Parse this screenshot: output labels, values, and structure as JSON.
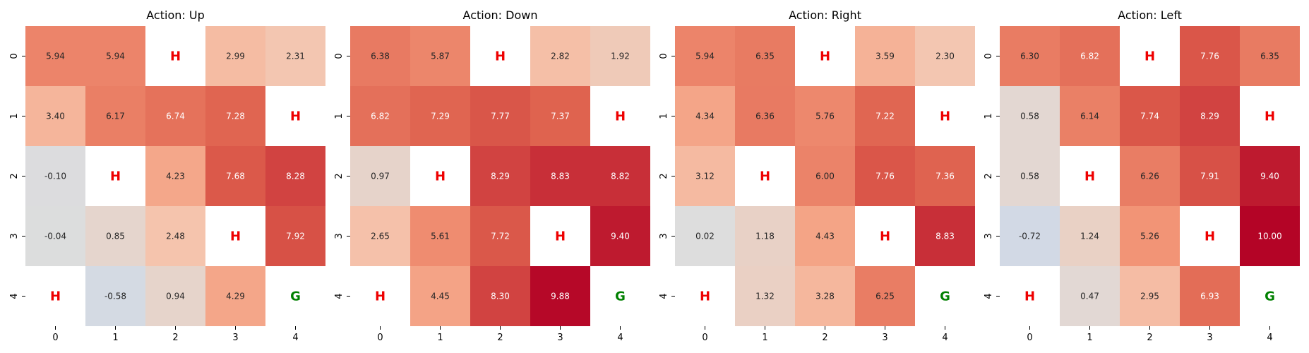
{
  "chart_data": [
    {
      "type": "heatmap",
      "title": "Action: Up",
      "x_ticks": [
        "0",
        "1",
        "2",
        "3",
        "4"
      ],
      "y_ticks": [
        "0",
        "1",
        "2",
        "3",
        "4"
      ],
      "cells": [
        [
          5.94,
          5.94,
          "H",
          2.99,
          2.31
        ],
        [
          3.4,
          6.17,
          6.74,
          7.28,
          "H"
        ],
        [
          -0.1,
          "H",
          4.23,
          7.68,
          8.28
        ],
        [
          -0.04,
          0.85,
          2.48,
          "H",
          7.92
        ],
        [
          "H",
          -0.58,
          0.94,
          4.29,
          "G"
        ]
      ]
    },
    {
      "type": "heatmap",
      "title": "Action: Down",
      "x_ticks": [
        "0",
        "1",
        "2",
        "3",
        "4"
      ],
      "y_ticks": [
        "0",
        "1",
        "2",
        "3",
        "4"
      ],
      "cells": [
        [
          6.38,
          5.87,
          "H",
          2.82,
          1.92
        ],
        [
          6.82,
          7.29,
          7.77,
          7.37,
          "H"
        ],
        [
          0.97,
          "H",
          8.29,
          8.83,
          8.82
        ],
        [
          2.65,
          5.61,
          7.72,
          "H",
          9.4
        ],
        [
          "H",
          4.45,
          8.3,
          9.88,
          "G"
        ]
      ]
    },
    {
      "type": "heatmap",
      "title": "Action: Right",
      "x_ticks": [
        "0",
        "1",
        "2",
        "3",
        "4"
      ],
      "y_ticks": [
        "0",
        "1",
        "2",
        "3",
        "4"
      ],
      "cells": [
        [
          5.94,
          6.35,
          "H",
          3.59,
          2.3
        ],
        [
          4.34,
          6.36,
          5.76,
          7.22,
          "H"
        ],
        [
          3.12,
          "H",
          6.0,
          7.76,
          7.36
        ],
        [
          0.02,
          1.18,
          4.43,
          "H",
          8.83
        ],
        [
          "H",
          1.32,
          3.28,
          6.25,
          "G"
        ]
      ]
    },
    {
      "type": "heatmap",
      "title": "Action: Left",
      "x_ticks": [
        "0",
        "1",
        "2",
        "3",
        "4"
      ],
      "y_ticks": [
        "0",
        "1",
        "2",
        "3",
        "4"
      ],
      "cells": [
        [
          6.3,
          6.82,
          "H",
          7.76,
          6.35
        ],
        [
          0.58,
          6.14,
          7.74,
          8.29,
          "H"
        ],
        [
          0.58,
          "H",
          6.26,
          7.91,
          9.4
        ],
        [
          -0.72,
          1.24,
          5.26,
          "H",
          10.0
        ],
        [
          "H",
          0.47,
          2.95,
          6.93,
          "G"
        ]
      ]
    }
  ],
  "colors": {
    "hole_text": "#ee0000",
    "goal_text": "#008000",
    "colormap": "coolwarm"
  },
  "value_range": [
    -10,
    10
  ]
}
